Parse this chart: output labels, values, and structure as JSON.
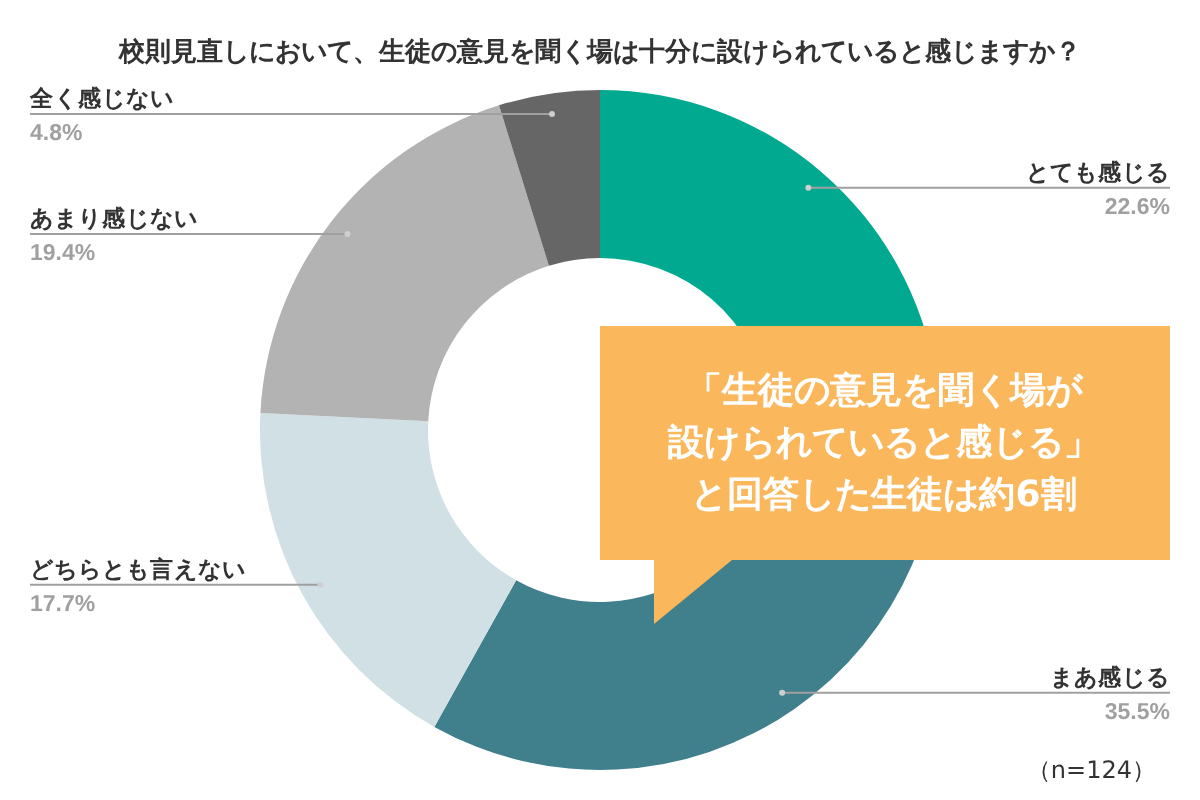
{
  "chart_data": {
    "type": "donut",
    "title": "校則見直しにおいて、生徒の意見を聞く場は十分に設けられていると感じますか？",
    "categories": [
      "とても感じる",
      "まあ感じる",
      "どちらとも言えない",
      "あまり感じない",
      "全く感じない"
    ],
    "values": [
      22.6,
      35.5,
      17.7,
      19.4,
      4.8
    ],
    "colors": [
      "#00a98f",
      "#407f8c",
      "#d1e0e5",
      "#b3b3b3",
      "#666666"
    ],
    "value_labels": [
      "22.6%",
      "35.5%",
      "17.7%",
      "19.4%",
      "4.8%"
    ],
    "annotations": [
      "「生徒の意見を聞く場が設けられていると感じる」と回答した生徒は約6割",
      "（n=124）"
    ]
  }
}
